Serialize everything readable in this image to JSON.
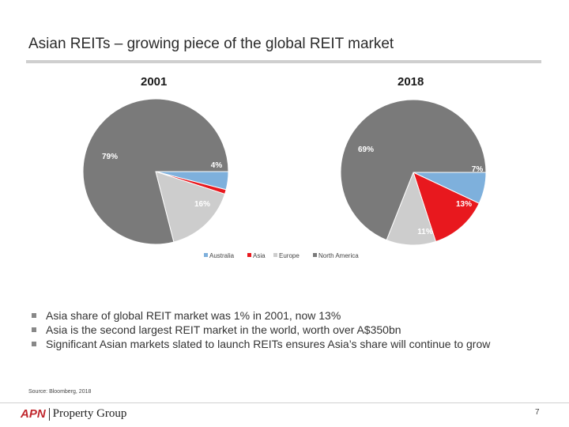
{
  "slide": {
    "title": "Asian REITs – growing piece of the global REIT market",
    "page_number": "7",
    "source": "Source: Bloomberg, 2018"
  },
  "logo": {
    "brand": "APN",
    "name": "Property Group"
  },
  "bullets": [
    "Asia share of global REIT market was 1% in 2001, now 13%",
    "Asia is the second largest REIT market in the world, worth over A$350bn",
    "Significant Asian markets slated to launch REITs ensures Asia’s share will continue to grow"
  ],
  "colors": {
    "Australia": "#7eb0dc",
    "Asia": "#e8181e",
    "Europe": "#cdcdcd",
    "North America": "#7a7a7a"
  },
  "chart_data": [
    {
      "type": "pie",
      "title": "2001",
      "categories": [
        "Australia",
        "Asia",
        "Europe",
        "North America"
      ],
      "values": [
        4,
        1,
        16,
        79
      ],
      "labels": [
        "4%",
        "",
        "16%",
        "79%"
      ]
    },
    {
      "type": "pie",
      "title": "2018",
      "categories": [
        "Australia",
        "Asia",
        "Europe",
        "North America"
      ],
      "values": [
        7,
        13,
        11,
        69
      ],
      "labels": [
        "7%",
        "13%",
        "11%",
        "69%"
      ]
    }
  ],
  "legend": [
    "Australia",
    "Asia",
    "Europe",
    "North America"
  ]
}
